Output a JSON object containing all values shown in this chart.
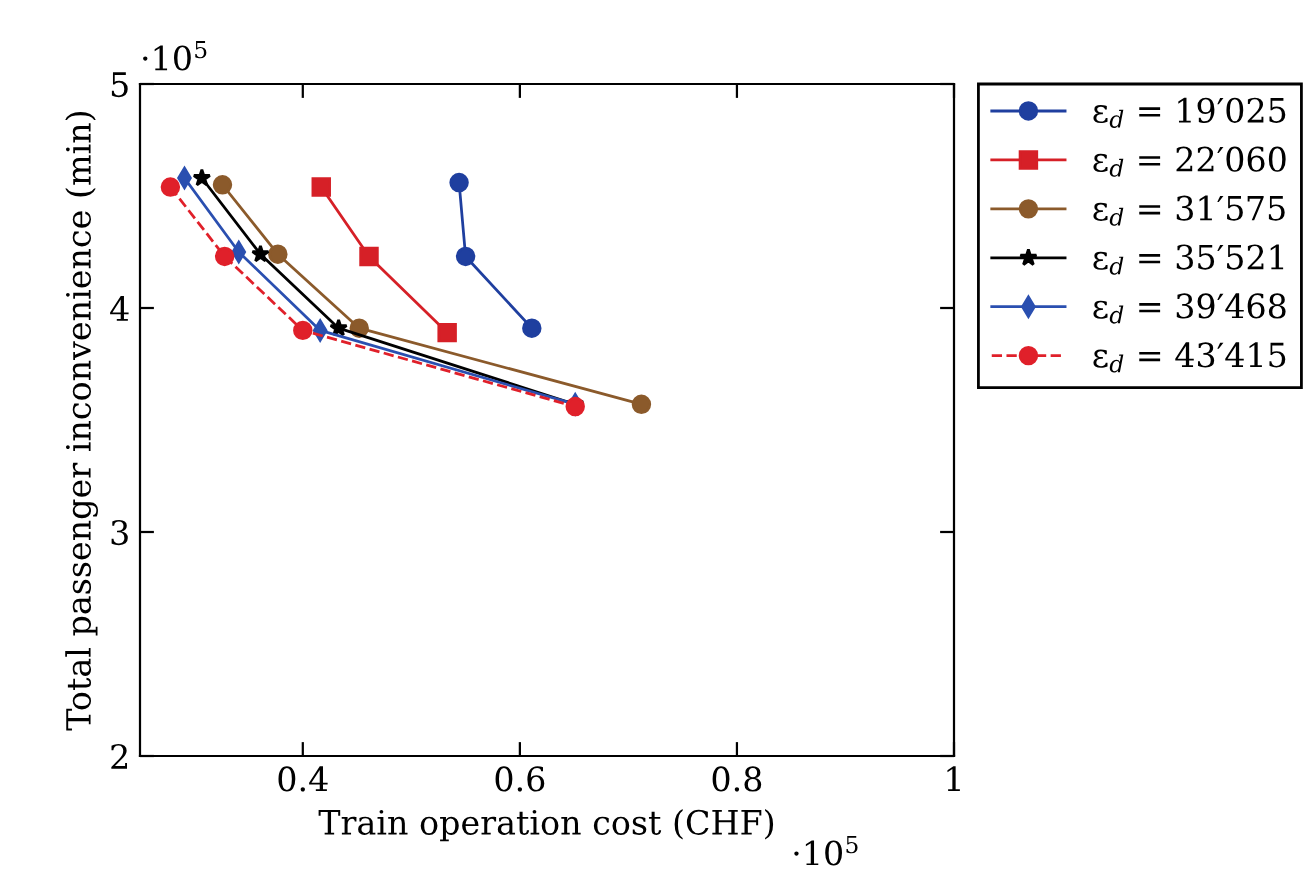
{
  "chart_data": {
    "type": "line",
    "xlabel": "Train operation cost (CHF)",
    "ylabel": "Total passenger inconvenience (min)",
    "annotations": [
      "·10$^{5}$",
      "·10$^{5}$"
    ],
    "xlim": [
      0.25,
      1
    ],
    "xticks": [
      0.4,
      0.6,
      0.8,
      1
    ],
    "ylim": [
      2,
      5
    ],
    "yticks": [
      2,
      3,
      4,
      5
    ],
    "grid": false,
    "legend": "right",
    "series": [
      {
        "name": "ε$_{d}$ = 19′025",
        "color": "#1f3f9f",
        "marker": "circle",
        "line_style": "solid",
        "x": [
          0.544,
          0.55,
          0.611
        ],
        "values": [
          4.56,
          4.23,
          3.91
        ]
      },
      {
        "name": "ε$_{d}$ = 22′060",
        "color": "#d62027",
        "marker": "square",
        "line_style": "solid",
        "x": [
          0.417,
          0.461,
          0.533
        ],
        "values": [
          4.54,
          4.23,
          3.89
        ]
      },
      {
        "name": "ε$_{d}$ = 31′575",
        "color": "#8b5a2b",
        "marker": "circle",
        "line_style": "solid",
        "x": [
          0.326,
          0.377,
          0.452,
          0.712
        ],
        "values": [
          4.55,
          4.24,
          3.91,
          3.57
        ]
      },
      {
        "name": "ε$_{d}$ = 35′521",
        "color": "#000000",
        "marker": "star",
        "line_style": "solid",
        "x": [
          0.307,
          0.361,
          0.433,
          0.651
        ],
        "values": [
          4.58,
          4.24,
          3.91,
          3.57
        ]
      },
      {
        "name": "ε$_{d}$ = 39′468",
        "color": "#2a4fb0",
        "marker": "diamond",
        "line_style": "solid",
        "x": [
          0.291,
          0.341,
          0.416,
          0.651
        ],
        "values": [
          4.58,
          4.25,
          3.9,
          3.57
        ]
      },
      {
        "name": "ε$_{d}$ = 43′415",
        "color": "#e0202a",
        "marker": "circle",
        "line_style": "dashed",
        "x": [
          0.278,
          0.328,
          0.4,
          0.651
        ],
        "values": [
          4.54,
          4.23,
          3.9,
          3.56
        ]
      }
    ]
  }
}
